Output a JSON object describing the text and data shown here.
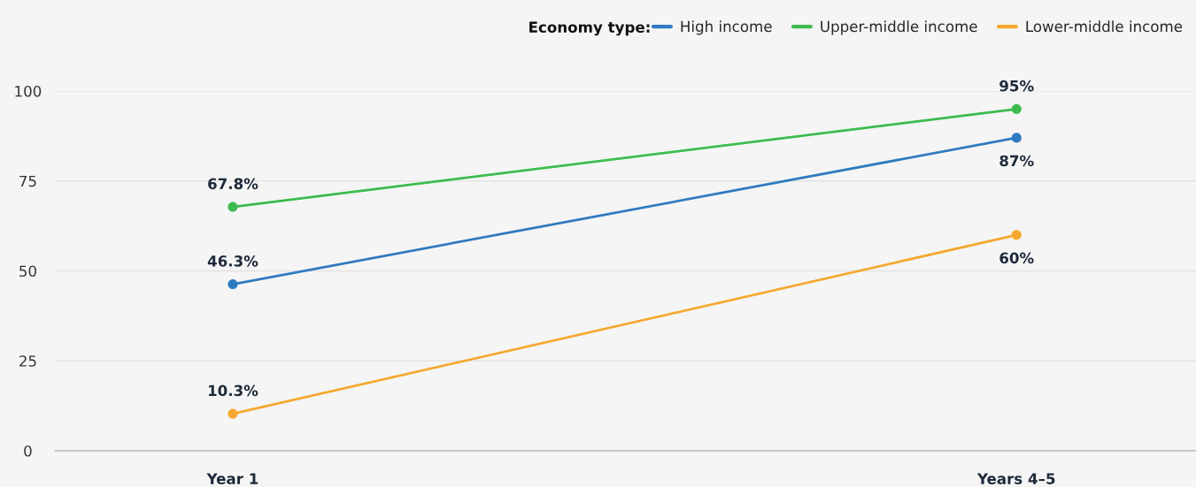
{
  "chart_data": {
    "type": "line",
    "categories": [
      "Year 1",
      "Years 4–5"
    ],
    "series": [
      {
        "name": "High income",
        "color": "#2f7bbf",
        "values": [
          46.3,
          87
        ],
        "value_labels": [
          "46.3%",
          "87%"
        ]
      },
      {
        "name": "Upper-middle income",
        "color": "#3dbb4e",
        "values": [
          67.8,
          95
        ],
        "value_labels": [
          "67.8%",
          "95%"
        ]
      },
      {
        "name": "Lower-middle income",
        "color": "#f5a830",
        "values": [
          10.3,
          60
        ],
        "value_labels": [
          "10.3%",
          "60%"
        ]
      }
    ],
    "legend_title": "Economy type:",
    "legend": "top right",
    "ylim": [
      0,
      100
    ],
    "yticks": [
      0,
      25,
      50,
      75,
      100
    ],
    "grid": "y",
    "marker": "circle",
    "line_style": "solid"
  }
}
